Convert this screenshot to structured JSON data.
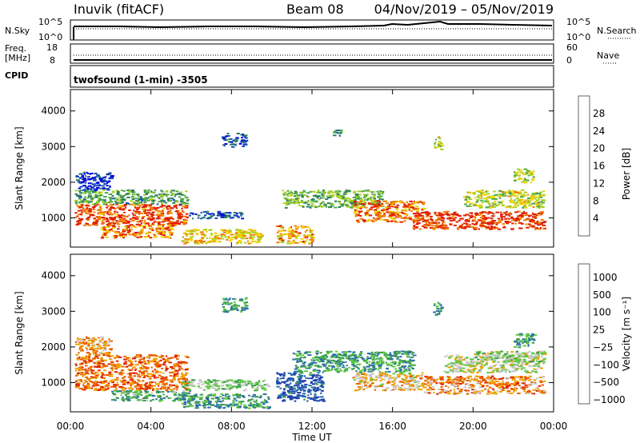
{
  "header": {
    "station": "Inuvik (fitACF)",
    "beam": "Beam 08",
    "date_range": "04/Nov/2019 – 05/Nov/2019"
  },
  "noise_panel": {
    "left_label": "N.Sky",
    "left_ticks": [
      "10^5",
      "10^0"
    ],
    "right_ticks": [
      "10^5",
      "10^0"
    ],
    "right_label": "N.Search"
  },
  "freq_panel": {
    "left_label_1": "Freq.",
    "left_label_2": "[MHz]",
    "left_ticks": [
      "18",
      "8"
    ],
    "right_ticks": [
      "60",
      "0"
    ],
    "right_label": "Nave"
  },
  "cpid": {
    "label": "CPID",
    "program": "twofsound (1-min) -3505"
  },
  "chart_data": [
    {
      "type": "heatmap",
      "variable": "Power",
      "ylabel": "Slant Range [km]",
      "xlabel": "",
      "x_ticks": [
        "00:00",
        "04:00",
        "08:00",
        "12:00",
        "16:00",
        "20:00",
        "00:00"
      ],
      "y_ticks": [
        "1000",
        "2000",
        "3000",
        "4000"
      ],
      "ylim": [
        180,
        4600
      ],
      "xlim_hours": [
        0,
        24
      ],
      "colorbar": {
        "label": "Power [dB]",
        "ticks": [
          "4",
          "8",
          "12",
          "16",
          "20",
          "24",
          "28"
        ],
        "colors": [
          "#0000e0",
          "#1a4fb5",
          "#2a7f5a",
          "#4fa84a",
          "#a8d020",
          "#f0d000",
          "#f08000",
          "#e02000"
        ]
      },
      "regions": [
        {
          "t0": 0.2,
          "t1": 5.8,
          "r0": 800,
          "r1": 1400,
          "level": 0.9
        },
        {
          "t0": 0.2,
          "t1": 5.8,
          "r0": 1400,
          "r1": 1800,
          "level": 0.4
        },
        {
          "t0": 1.5,
          "t1": 5.0,
          "r0": 450,
          "r1": 800,
          "level": 0.8
        },
        {
          "t0": 5.5,
          "t1": 9.5,
          "r0": 300,
          "r1": 700,
          "level": 0.7
        },
        {
          "t0": 5.8,
          "t1": 8.5,
          "r0": 1000,
          "r1": 1200,
          "level": 0.2
        },
        {
          "t0": 10.2,
          "t1": 12.0,
          "r0": 300,
          "r1": 800,
          "level": 0.75
        },
        {
          "t0": 10.5,
          "t1": 15.5,
          "r0": 1300,
          "r1": 1800,
          "level": 0.45
        },
        {
          "t0": 14.0,
          "t1": 17.5,
          "r0": 900,
          "r1": 1500,
          "level": 0.85
        },
        {
          "t0": 17.0,
          "t1": 23.5,
          "r0": 700,
          "r1": 1200,
          "level": 0.95
        },
        {
          "t0": 19.5,
          "t1": 23.5,
          "r0": 1300,
          "r1": 1800,
          "level": 0.6
        },
        {
          "t0": 22.0,
          "t1": 23.0,
          "r0": 2000,
          "r1": 2400,
          "level": 0.55
        },
        {
          "t0": 18.0,
          "t1": 18.4,
          "r0": 2900,
          "r1": 3300,
          "level": 0.6
        },
        {
          "t0": 7.5,
          "t1": 8.7,
          "r0": 3000,
          "r1": 3400,
          "level": 0.2
        },
        {
          "t0": 13.0,
          "t1": 13.5,
          "r0": 3300,
          "r1": 3500,
          "level": 0.4
        },
        {
          "t0": 0.2,
          "t1": 2.0,
          "r0": 1800,
          "r1": 2300,
          "level": 0.15
        }
      ]
    },
    {
      "type": "heatmap",
      "variable": "Velocity",
      "ylabel": "Slant Range [km]",
      "xlabel": "Time UT",
      "x_ticks": [
        "00:00",
        "04:00",
        "08:00",
        "12:00",
        "16:00",
        "20:00",
        "00:00"
      ],
      "y_ticks": [
        "1000",
        "2000",
        "3000",
        "4000"
      ],
      "ylim": [
        180,
        4600
      ],
      "xlim_hours": [
        0,
        24
      ],
      "colorbar": {
        "label": "Velocity [m s⁻¹]",
        "ticks": [
          "1000",
          "500",
          "100",
          "25",
          "−25",
          "−100",
          "−500",
          "−1000"
        ],
        "colors": [
          "#1f3fb0",
          "#2a70a8",
          "#3a9a50",
          "#5cc840",
          "#c8c8c8",
          "#f0a000",
          "#e86000",
          "#e02000"
        ]
      },
      "regions": [
        {
          "t0": 0.2,
          "t1": 5.8,
          "r0": 800,
          "r1": 1800,
          "level": 0.8
        },
        {
          "t0": 2.0,
          "t1": 6.0,
          "r0": 500,
          "r1": 800,
          "level": 0.35
        },
        {
          "t0": 5.5,
          "t1": 9.8,
          "r0": 800,
          "r1": 1100,
          "level": 0.45
        },
        {
          "t0": 5.5,
          "t1": 9.8,
          "r0": 300,
          "r1": 700,
          "level": 0.28
        },
        {
          "t0": 10.2,
          "t1": 12.5,
          "r0": 500,
          "r1": 1300,
          "level": 0.1
        },
        {
          "t0": 11.0,
          "t1": 17.0,
          "r0": 1300,
          "r1": 1900,
          "level": 0.3
        },
        {
          "t0": 14.0,
          "t1": 17.5,
          "r0": 800,
          "r1": 1300,
          "level": 0.65
        },
        {
          "t0": 17.5,
          "t1": 23.5,
          "r0": 700,
          "r1": 1200,
          "level": 0.75
        },
        {
          "t0": 18.5,
          "t1": 23.5,
          "r0": 1300,
          "r1": 1800,
          "level": 0.55
        },
        {
          "t0": 20.0,
          "t1": 23.5,
          "r0": 1600,
          "r1": 1900,
          "level": 0.5
        },
        {
          "t0": 22.0,
          "t1": 23.0,
          "r0": 2000,
          "r1": 2400,
          "level": 0.3
        },
        {
          "t0": 18.0,
          "t1": 18.4,
          "r0": 2900,
          "r1": 3300,
          "level": 0.3
        },
        {
          "t0": 7.5,
          "t1": 8.7,
          "r0": 3000,
          "r1": 3400,
          "level": 0.3
        },
        {
          "t0": 0.2,
          "t1": 2.0,
          "r0": 1800,
          "r1": 2300,
          "level": 0.7
        }
      ]
    }
  ]
}
